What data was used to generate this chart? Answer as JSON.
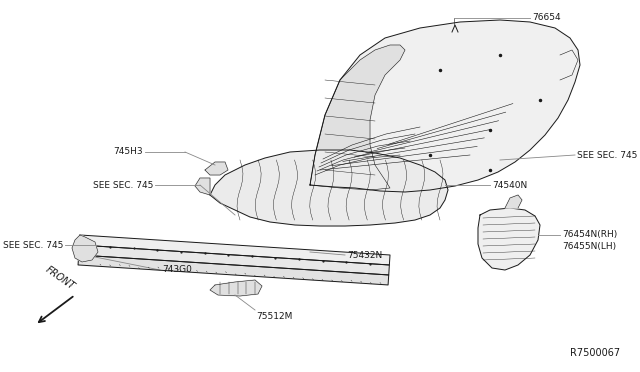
{
  "background_color": "#ffffff",
  "figure_id": "R7500067",
  "text_color": "#1a1a1a",
  "line_color": "#1a1a1a",
  "leader_color": "#888888",
  "font_size": 6.5,
  "label_76654": "76654",
  "label_see745_floor": "SEE SEC. 745",
  "label_74540N": "74540N",
  "label_745H3": "745H3",
  "label_see745_mid": "SEE SEC. 745",
  "label_see745_lower": "SEE SEC. 745",
  "label_75432N": "75432N",
  "label_743G0": "743G0",
  "label_75512M": "75512M",
  "label_76454": "76454N(RH)\n76455N(LH)",
  "label_front": "FRONT"
}
